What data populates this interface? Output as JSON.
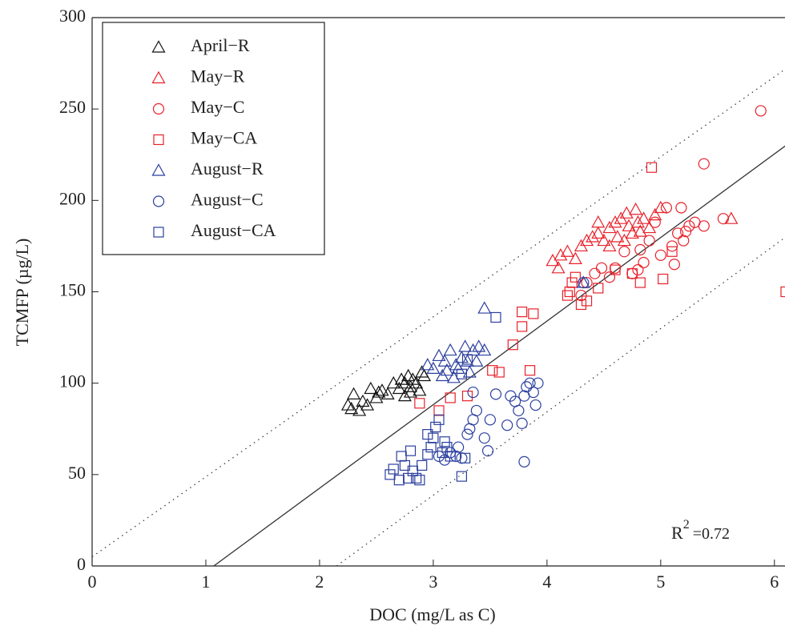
{
  "chart_data": {
    "type": "scatter",
    "x_label": "DOC (mg/L as C)",
    "y_label": "TCMFP (µg/L)",
    "annotation": {
      "base": "R",
      "sup": "2",
      "text": "=0.72"
    },
    "xlim": [
      0,
      6.1
    ],
    "ylim": [
      0,
      300
    ],
    "xticks": [
      0,
      1,
      2,
      3,
      4,
      5,
      6
    ],
    "yticks": [
      0,
      50,
      100,
      150,
      200,
      250,
      300
    ],
    "legend": "upper-left",
    "series": [
      {
        "name": "April−R",
        "color": "#111111",
        "marker": "triangle",
        "x": [
          2.25,
          2.28,
          2.3,
          2.35,
          2.38,
          2.42,
          2.45,
          2.5,
          2.52,
          2.55,
          2.6,
          2.65,
          2.7,
          2.72,
          2.75,
          2.78,
          2.8,
          2.82,
          2.85,
          2.88,
          2.9,
          2.92,
          2.8,
          2.75
        ],
        "y": [
          88,
          86,
          94,
          85,
          90,
          88,
          97,
          92,
          95,
          96,
          94,
          100,
          97,
          102,
          100,
          104,
          98,
          102,
          100,
          96,
          106,
          104,
          95,
          93
        ]
      },
      {
        "name": "May−R",
        "color": "#e8212a",
        "marker": "triangle",
        "x": [
          4.05,
          4.1,
          4.12,
          4.18,
          4.25,
          4.3,
          4.35,
          4.4,
          4.45,
          4.5,
          4.55,
          4.6,
          4.62,
          4.65,
          4.7,
          4.72,
          4.75,
          4.78,
          4.8,
          4.85,
          4.9,
          4.95,
          5.0,
          4.68,
          4.55,
          4.82,
          5.62,
          4.45
        ],
        "y": [
          167,
          163,
          170,
          172,
          168,
          175,
          178,
          180,
          182,
          178,
          185,
          188,
          180,
          190,
          193,
          186,
          182,
          195,
          188,
          190,
          185,
          192,
          196,
          178,
          175,
          183,
          190,
          188
        ]
      },
      {
        "name": "May−C",
        "color": "#e8212a",
        "marker": "circle",
        "x": [
          4.3,
          4.35,
          4.42,
          4.48,
          4.55,
          4.6,
          4.68,
          4.75,
          4.8,
          4.85,
          4.9,
          4.95,
          5.0,
          5.05,
          5.1,
          5.12,
          5.15,
          5.18,
          5.2,
          5.25,
          5.3,
          5.38,
          5.38,
          5.55,
          5.88,
          4.82,
          5.22
        ],
        "y": [
          148,
          155,
          160,
          163,
          158,
          163,
          172,
          160,
          162,
          166,
          178,
          188,
          170,
          196,
          175,
          165,
          182,
          196,
          178,
          186,
          188,
          186,
          220,
          190,
          249,
          173,
          183
        ]
      },
      {
        "name": "May−CA",
        "color": "#e8212a",
        "marker": "square",
        "x": [
          2.88,
          3.05,
          3.15,
          3.3,
          3.52,
          3.58,
          3.7,
          3.78,
          3.78,
          3.88,
          3.85,
          4.18,
          4.22,
          4.2,
          4.3,
          4.35,
          4.45,
          4.6,
          4.82,
          4.92,
          5.02,
          5.1,
          6.1,
          4.25,
          4.75
        ],
        "y": [
          89,
          85,
          92,
          93,
          107,
          106,
          121,
          139,
          131,
          138,
          107,
          148,
          155,
          150,
          143,
          145,
          152,
          162,
          155,
          218,
          157,
          172,
          150,
          158,
          160
        ]
      },
      {
        "name": "August−R",
        "color": "#2b3f9e",
        "marker": "triangle",
        "x": [
          2.95,
          3.0,
          3.05,
          3.1,
          3.12,
          3.15,
          3.2,
          3.25,
          3.28,
          3.3,
          3.32,
          3.35,
          3.4,
          3.45,
          3.45,
          3.18,
          3.08,
          3.22,
          3.38,
          4.32
        ],
        "y": [
          110,
          108,
          115,
          112,
          107,
          118,
          110,
          114,
          120,
          112,
          106,
          118,
          120,
          141,
          118,
          103,
          104,
          108,
          112,
          155
        ]
      },
      {
        "name": "August−C",
        "color": "#2b3f9e",
        "marker": "circle",
        "x": [
          3.05,
          3.1,
          3.15,
          3.2,
          3.25,
          3.3,
          3.32,
          3.35,
          3.38,
          3.45,
          3.48,
          3.5,
          3.55,
          3.65,
          3.68,
          3.72,
          3.75,
          3.78,
          3.8,
          3.82,
          3.85,
          3.88,
          3.92,
          3.9,
          3.8,
          3.35,
          4.32,
          3.22
        ],
        "y": [
          60,
          58,
          62,
          60,
          59,
          72,
          75,
          80,
          85,
          70,
          63,
          80,
          94,
          77,
          93,
          90,
          85,
          78,
          93,
          98,
          100,
          95,
          100,
          88,
          57,
          95,
          155,
          65
        ]
      },
      {
        "name": "August−CA",
        "color": "#2b3f9e",
        "marker": "square",
        "x": [
          2.62,
          2.65,
          2.7,
          2.72,
          2.75,
          2.78,
          2.8,
          2.82,
          2.85,
          2.88,
          2.9,
          2.95,
          2.98,
          3.0,
          3.02,
          3.05,
          3.08,
          3.1,
          3.12,
          3.15,
          3.25,
          3.28,
          3.55,
          3.25,
          3.3,
          2.95
        ],
        "y": [
          50,
          53,
          47,
          60,
          55,
          48,
          63,
          52,
          48,
          47,
          55,
          72,
          65,
          70,
          76,
          80,
          62,
          68,
          65,
          60,
          49,
          59,
          136,
          105,
          113,
          61
        ]
      }
    ],
    "lines": [
      {
        "style": "solid",
        "x": [
          1.07,
          6.1
        ],
        "y": [
          0,
          230
        ]
      },
      {
        "style": "dotted",
        "x": [
          0,
          6.1
        ],
        "y": [
          5,
          272
        ]
      },
      {
        "style": "dotted",
        "x": [
          2.15,
          6.1
        ],
        "y": [
          0,
          180
        ]
      }
    ]
  }
}
